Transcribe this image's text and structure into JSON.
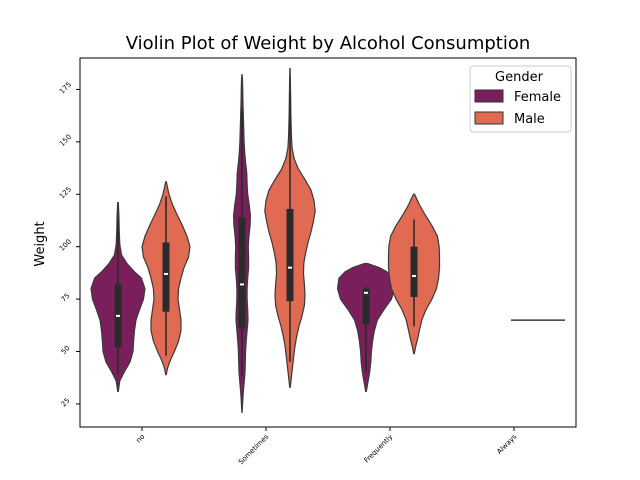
{
  "chart_data": {
    "type": "violin",
    "title": "Violin Plot of Weight by Alcohol Consumption",
    "xlabel": "",
    "ylabel": "Weight",
    "ylim": [
      14,
      190
    ],
    "yticks": [
      25,
      50,
      75,
      100,
      125,
      150,
      175
    ],
    "categories": [
      "no",
      "Sometimes",
      "Frequently",
      "Always"
    ],
    "legend": {
      "title": "Gender",
      "placement": "top-right",
      "entries": [
        {
          "label": "Female",
          "color": "#7a1f5c"
        },
        {
          "label": "Male",
          "color": "#e06a52"
        }
      ]
    },
    "series": [
      {
        "name": "Female",
        "color": "#7a1f5c",
        "violins": [
          {
            "category": "no",
            "min": 39,
            "q1": 52,
            "median": 67,
            "q3": 82,
            "max": 113,
            "profile": [
              [
                31,
                0.01
              ],
              [
                36,
                0.06
              ],
              [
                40,
                0.2
              ],
              [
                45,
                0.4
              ],
              [
                50,
                0.5
              ],
              [
                55,
                0.52
              ],
              [
                60,
                0.55
              ],
              [
                65,
                0.6
              ],
              [
                70,
                0.72
              ],
              [
                75,
                0.85
              ],
              [
                80,
                0.9
              ],
              [
                85,
                0.78
              ],
              [
                88,
                0.55
              ],
              [
                92,
                0.3
              ],
              [
                96,
                0.12
              ],
              [
                101,
                0.06
              ],
              [
                108,
                0.04
              ],
              [
                115,
                0.03
              ],
              [
                121,
                0.01
              ]
            ]
          },
          {
            "category": "Sometimes",
            "min": 38,
            "q1": 61,
            "median": 82,
            "q3": 114,
            "max": 165,
            "profile": [
              [
                21,
                0.005
              ],
              [
                25,
                0.02
              ],
              [
                30,
                0.04
              ],
              [
                35,
                0.07
              ],
              [
                40,
                0.1
              ],
              [
                45,
                0.11
              ],
              [
                50,
                0.12
              ],
              [
                55,
                0.14
              ],
              [
                60,
                0.17
              ],
              [
                65,
                0.2
              ],
              [
                70,
                0.19
              ],
              [
                75,
                0.17
              ],
              [
                80,
                0.17
              ],
              [
                85,
                0.19
              ],
              [
                90,
                0.22
              ],
              [
                95,
                0.22
              ],
              [
                100,
                0.21
              ],
              [
                105,
                0.23
              ],
              [
                110,
                0.27
              ],
              [
                115,
                0.28
              ],
              [
                120,
                0.24
              ],
              [
                125,
                0.19
              ],
              [
                130,
                0.17
              ],
              [
                135,
                0.16
              ],
              [
                140,
                0.12
              ],
              [
                145,
                0.09
              ],
              [
                150,
                0.07
              ],
              [
                155,
                0.06
              ],
              [
                160,
                0.05
              ],
              [
                165,
                0.04
              ],
              [
                170,
                0.03
              ],
              [
                175,
                0.025
              ],
              [
                180,
                0.015
              ],
              [
                182,
                0.005
              ]
            ]
          },
          {
            "category": "Frequently",
            "min": 40,
            "q1": 63,
            "median": 78,
            "q3": 80,
            "max": 81,
            "profile": [
              [
                31,
                0.01
              ],
              [
                35,
                0.06
              ],
              [
                40,
                0.12
              ],
              [
                45,
                0.16
              ],
              [
                50,
                0.18
              ],
              [
                55,
                0.22
              ],
              [
                60,
                0.28
              ],
              [
                65,
                0.38
              ],
              [
                70,
                0.6
              ],
              [
                75,
                0.85
              ],
              [
                80,
                0.95
              ],
              [
                85,
                0.9
              ],
              [
                88,
                0.7
              ],
              [
                90,
                0.45
              ],
              [
                92,
                0.05
              ]
            ]
          }
        ]
      },
      {
        "name": "Male",
        "color": "#e06a52",
        "violins": [
          {
            "category": "no",
            "min": 48,
            "q1": 69,
            "median": 87,
            "q3": 102,
            "max": 124,
            "profile": [
              [
                39,
                0.01
              ],
              [
                42,
                0.05
              ],
              [
                46,
                0.15
              ],
              [
                50,
                0.28
              ],
              [
                55,
                0.42
              ],
              [
                60,
                0.5
              ],
              [
                65,
                0.5
              ],
              [
                70,
                0.45
              ],
              [
                75,
                0.4
              ],
              [
                80,
                0.42
              ],
              [
                85,
                0.5
              ],
              [
                90,
                0.6
              ],
              [
                95,
                0.75
              ],
              [
                100,
                0.8
              ],
              [
                105,
                0.7
              ],
              [
                110,
                0.55
              ],
              [
                115,
                0.38
              ],
              [
                120,
                0.22
              ],
              [
                125,
                0.1
              ],
              [
                131,
                0.01
              ]
            ]
          },
          {
            "category": "Sometimes",
            "min": 45,
            "q1": 74,
            "median": 90,
            "q3": 118,
            "max": 173,
            "profile": [
              [
                33,
                0.01
              ],
              [
                37,
                0.04
              ],
              [
                42,
                0.08
              ],
              [
                47,
                0.12
              ],
              [
                52,
                0.16
              ],
              [
                57,
                0.22
              ],
              [
                62,
                0.3
              ],
              [
                67,
                0.4
              ],
              [
                72,
                0.48
              ],
              [
                77,
                0.5
              ],
              [
                82,
                0.48
              ],
              [
                87,
                0.45
              ],
              [
                92,
                0.46
              ],
              [
                97,
                0.52
              ],
              [
                102,
                0.6
              ],
              [
                107,
                0.7
              ],
              [
                112,
                0.78
              ],
              [
                117,
                0.84
              ],
              [
                122,
                0.8
              ],
              [
                127,
                0.7
              ],
              [
                132,
                0.5
              ],
              [
                137,
                0.28
              ],
              [
                142,
                0.14
              ],
              [
                147,
                0.07
              ],
              [
                152,
                0.05
              ],
              [
                157,
                0.04
              ],
              [
                162,
                0.03
              ],
              [
                167,
                0.025
              ],
              [
                172,
                0.02
              ],
              [
                178,
                0.015
              ],
              [
                185,
                0.005
              ]
            ]
          },
          {
            "category": "Frequently",
            "min": 62,
            "q1": 76,
            "median": 86,
            "q3": 100,
            "max": 113,
            "profile": [
              [
                49,
                0.01
              ],
              [
                52,
                0.05
              ],
              [
                56,
                0.12
              ],
              [
                60,
                0.18
              ],
              [
                65,
                0.26
              ],
              [
                70,
                0.4
              ],
              [
                75,
                0.6
              ],
              [
                80,
                0.75
              ],
              [
                85,
                0.82
              ],
              [
                90,
                0.85
              ],
              [
                95,
                0.85
              ],
              [
                100,
                0.84
              ],
              [
                105,
                0.78
              ],
              [
                110,
                0.6
              ],
              [
                115,
                0.38
              ],
              [
                120,
                0.18
              ],
              [
                125,
                0.02
              ]
            ]
          },
          {
            "category": "Always",
            "min": 65,
            "q1": 65,
            "median": 65,
            "q3": 65,
            "max": 65,
            "profile": [],
            "single_value": 65
          }
        ]
      }
    ],
    "grid": false
  }
}
